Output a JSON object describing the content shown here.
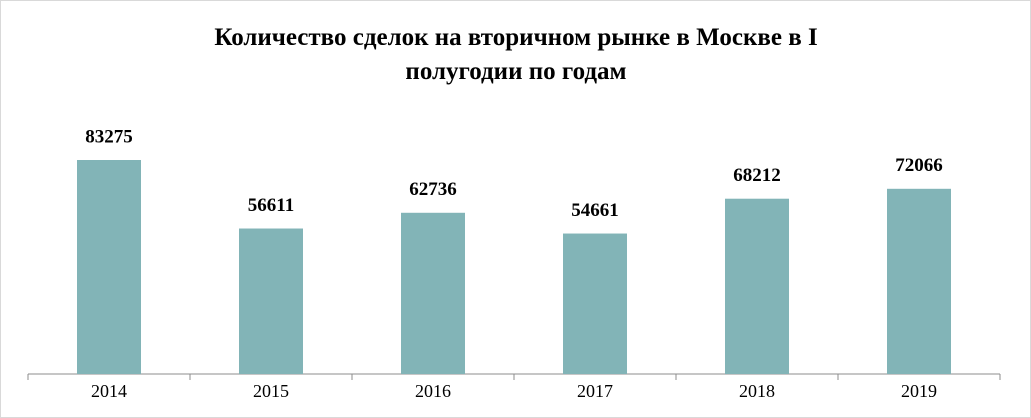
{
  "chart_data": {
    "type": "bar",
    "title": "Количество сделок на вторичном рынке в Москве в I полугодии по годам",
    "categories": [
      "2014",
      "2015",
      "2016",
      "2017",
      "2018",
      "2019"
    ],
    "values": [
      83275,
      56611,
      62736,
      54661,
      68212,
      72066
    ],
    "color": "#82b4b7"
  }
}
